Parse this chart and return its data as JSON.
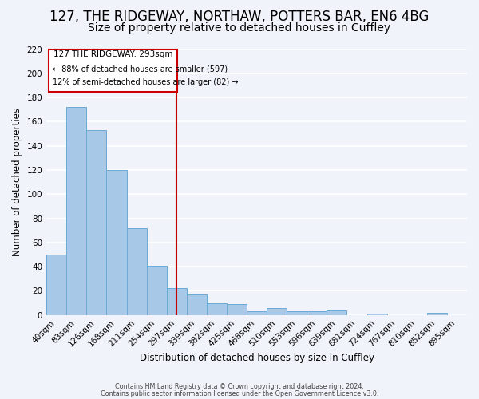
{
  "title": "127, THE RIDGEWAY, NORTHAW, POTTERS BAR, EN6 4BG",
  "subtitle": "Size of property relative to detached houses in Cuffley",
  "xlabel": "Distribution of detached houses by size in Cuffley",
  "ylabel": "Number of detached properties",
  "footer_lines": [
    "Contains HM Land Registry data © Crown copyright and database right 2024.",
    "Contains public sector information licensed under the Open Government Licence v3.0."
  ],
  "bin_labels": [
    "40sqm",
    "83sqm",
    "126sqm",
    "168sqm",
    "211sqm",
    "254sqm",
    "297sqm",
    "339sqm",
    "382sqm",
    "425sqm",
    "468sqm",
    "510sqm",
    "553sqm",
    "596sqm",
    "639sqm",
    "681sqm",
    "724sqm",
    "767sqm",
    "810sqm",
    "852sqm",
    "895sqm"
  ],
  "bar_heights": [
    50,
    172,
    153,
    120,
    72,
    41,
    22,
    17,
    10,
    9,
    3,
    6,
    3,
    3,
    4,
    0,
    1,
    0,
    0,
    2,
    0
  ],
  "bar_color": "#a8c8e8",
  "bar_edge_color": "#6aaad4",
  "vline_x": 6,
  "vline_color": "#cc0000",
  "annotation_title": "127 THE RIDGEWAY: 293sqm",
  "annotation_line1": "← 88% of detached houses are smaller (597)",
  "annotation_line2": "12% of semi-detached houses are larger (82) →",
  "annotation_box_edge": "#cc0000",
  "ylim": [
    0,
    220
  ],
  "yticks": [
    0,
    20,
    40,
    60,
    80,
    100,
    120,
    140,
    160,
    180,
    200,
    220
  ],
  "bg_color": "#f0f4fa",
  "grid_color": "#ffffff",
  "title_fontsize": 12,
  "subtitle_fontsize": 10,
  "axis_label_fontsize": 8.5,
  "tick_fontsize": 7.5,
  "annotation_fontsize_title": 7.5,
  "annotation_fontsize_body": 7.0
}
